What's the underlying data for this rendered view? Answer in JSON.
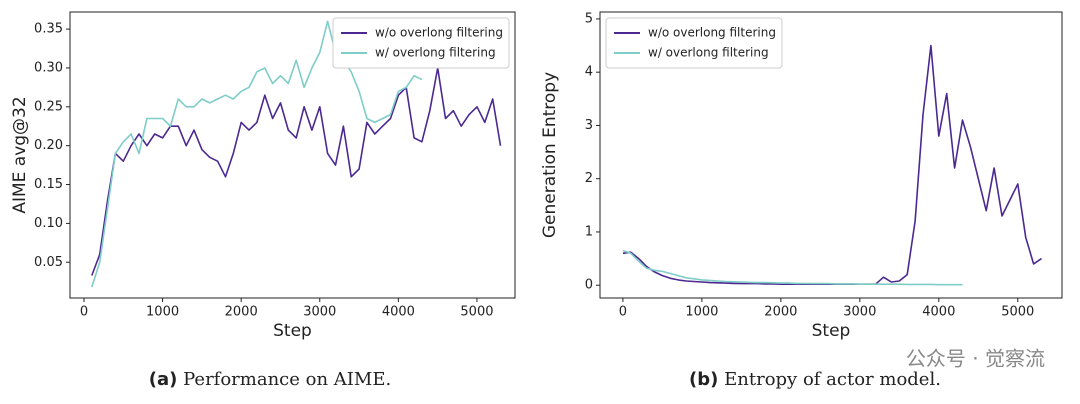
{
  "chart_data": [
    {
      "type": "line",
      "caption_label": "(a)",
      "caption": "Performance on AIME.",
      "xlabel": "Step",
      "ylabel": "AIME avg@32",
      "xlim": [
        -178,
        5484
      ],
      "xticks": [
        0,
        1000,
        2000,
        3000,
        4000,
        5000
      ],
      "ylim": [
        0.004,
        0.372
      ],
      "yticks": [
        0.05,
        {
          "value": 0.1,
          "label": "0.10"
        },
        0.15,
        {
          "value": 0.2,
          "label": "0.20"
        },
        0.25,
        {
          "value": 0.3,
          "label": "0.30"
        },
        0.35
      ],
      "grid": false,
      "legend": "upper right",
      "series": [
        {
          "name": "w/o overlong filtering",
          "color": "#4b2991",
          "x": [
            100,
            200,
            300,
            400,
            500,
            600,
            700,
            800,
            900,
            1000,
            1100,
            1200,
            1300,
            1400,
            1500,
            1600,
            1700,
            1800,
            1900,
            2000,
            2100,
            2200,
            2300,
            2400,
            2500,
            2600,
            2700,
            2800,
            2900,
            3000,
            3100,
            3200,
            3300,
            3400,
            3500,
            3600,
            3700,
            3800,
            3900,
            4000,
            4100,
            4200,
            4300,
            4400,
            4500,
            4600,
            4700,
            4800,
            4900,
            5000,
            5100,
            5200,
            5300
          ],
          "values": [
            0.033,
            0.06,
            0.13,
            0.19,
            0.18,
            0.2,
            0.215,
            0.2,
            0.215,
            0.21,
            0.225,
            0.225,
            0.2,
            0.22,
            0.195,
            0.185,
            0.18,
            0.16,
            0.19,
            0.23,
            0.22,
            0.23,
            0.265,
            0.235,
            0.255,
            0.22,
            0.21,
            0.25,
            0.22,
            0.25,
            0.19,
            0.175,
            0.225,
            0.16,
            0.17,
            0.23,
            0.215,
            0.225,
            0.235,
            0.265,
            0.275,
            0.21,
            0.205,
            0.245,
            0.3,
            0.235,
            0.245,
            0.225,
            0.24,
            0.25,
            0.23,
            0.26,
            0.2
          ]
        },
        {
          "name": "w/ overlong filtering",
          "color": "#7fcdc8",
          "x": [
            100,
            200,
            300,
            400,
            500,
            600,
            700,
            800,
            900,
            1000,
            1100,
            1200,
            1300,
            1400,
            1500,
            1600,
            1700,
            1800,
            1900,
            2000,
            2100,
            2200,
            2300,
            2400,
            2500,
            2600,
            2700,
            2800,
            2900,
            3000,
            3100,
            3200,
            3300,
            3400,
            3500,
            3600,
            3700,
            3800,
            3900,
            4000,
            4100,
            4200,
            4300
          ],
          "values": [
            0.018,
            0.05,
            0.12,
            0.19,
            0.205,
            0.215,
            0.19,
            0.235,
            0.235,
            0.235,
            0.225,
            0.26,
            0.25,
            0.25,
            0.26,
            0.255,
            0.26,
            0.265,
            0.26,
            0.27,
            0.275,
            0.295,
            0.3,
            0.28,
            0.29,
            0.28,
            0.31,
            0.275,
            0.3,
            0.32,
            0.36,
            0.32,
            0.31,
            0.295,
            0.27,
            0.235,
            0.23,
            0.235,
            0.24,
            0.27,
            0.275,
            0.29,
            0.285
          ]
        }
      ]
    },
    {
      "type": "line",
      "caption_label": "(b)",
      "caption": "Entropy of actor model.",
      "xlabel": "Step",
      "ylabel": "Generation Entropy",
      "xlim": [
        -290,
        5560
      ],
      "xticks": [
        0,
        1000,
        2000,
        3000,
        4000,
        5000
      ],
      "ylim": [
        -0.24,
        5.13
      ],
      "yticks": [
        0,
        1,
        2,
        3,
        4,
        5
      ],
      "grid": false,
      "legend": "upper left",
      "series": [
        {
          "name": "w/o overlong filtering",
          "color": "#4b2991",
          "x": [
            0,
            100,
            200,
            300,
            400,
            500,
            600,
            700,
            800,
            900,
            1000,
            1100,
            1200,
            1300,
            1400,
            1500,
            1600,
            1700,
            1800,
            1900,
            2000,
            2100,
            2200,
            2300,
            2400,
            2500,
            2600,
            2700,
            2800,
            2900,
            3000,
            3100,
            3200,
            3300,
            3400,
            3500,
            3600,
            3700,
            3800,
            3900,
            4000,
            4100,
            4200,
            4300,
            4400,
            4500,
            4600,
            4700,
            4800,
            4900,
            5000,
            5100,
            5200,
            5300
          ],
          "values": [
            0.6,
            0.62,
            0.5,
            0.35,
            0.25,
            0.18,
            0.13,
            0.1,
            0.08,
            0.07,
            0.06,
            0.05,
            0.045,
            0.04,
            0.035,
            0.03,
            0.03,
            0.03,
            0.025,
            0.025,
            0.02,
            0.02,
            0.02,
            0.02,
            0.02,
            0.02,
            0.02,
            0.02,
            0.02,
            0.02,
            0.02,
            0.02,
            0.02,
            0.15,
            0.06,
            0.08,
            0.2,
            1.2,
            3.2,
            4.5,
            2.8,
            3.6,
            2.2,
            3.1,
            2.6,
            2.0,
            1.4,
            2.2,
            1.3,
            1.6,
            1.9,
            0.9,
            0.4,
            0.5
          ]
        },
        {
          "name": "w/ overlong filtering",
          "color": "#7fcdc8",
          "x": [
            0,
            100,
            200,
            300,
            400,
            500,
            600,
            700,
            800,
            900,
            1000,
            1100,
            1200,
            1300,
            1400,
            1500,
            1600,
            1700,
            1800,
            1900,
            2000,
            2100,
            2200,
            2300,
            2400,
            2500,
            2600,
            2700,
            2800,
            2900,
            3000,
            3100,
            3200,
            3300,
            3400,
            3500,
            3600,
            3700,
            3800,
            3900,
            4000,
            4100,
            4200,
            4300
          ],
          "values": [
            0.65,
            0.6,
            0.45,
            0.32,
            0.28,
            0.26,
            0.22,
            0.18,
            0.14,
            0.12,
            0.1,
            0.09,
            0.08,
            0.07,
            0.065,
            0.06,
            0.055,
            0.05,
            0.05,
            0.045,
            0.04,
            0.04,
            0.035,
            0.035,
            0.03,
            0.03,
            0.03,
            0.025,
            0.025,
            0.025,
            0.02,
            0.02,
            0.02,
            0.02,
            0.02,
            0.02,
            0.015,
            0.015,
            0.015,
            0.015,
            0.01,
            0.01,
            0.01,
            0.01
          ]
        }
      ]
    }
  ],
  "watermark": "公众号 · 觉察流"
}
